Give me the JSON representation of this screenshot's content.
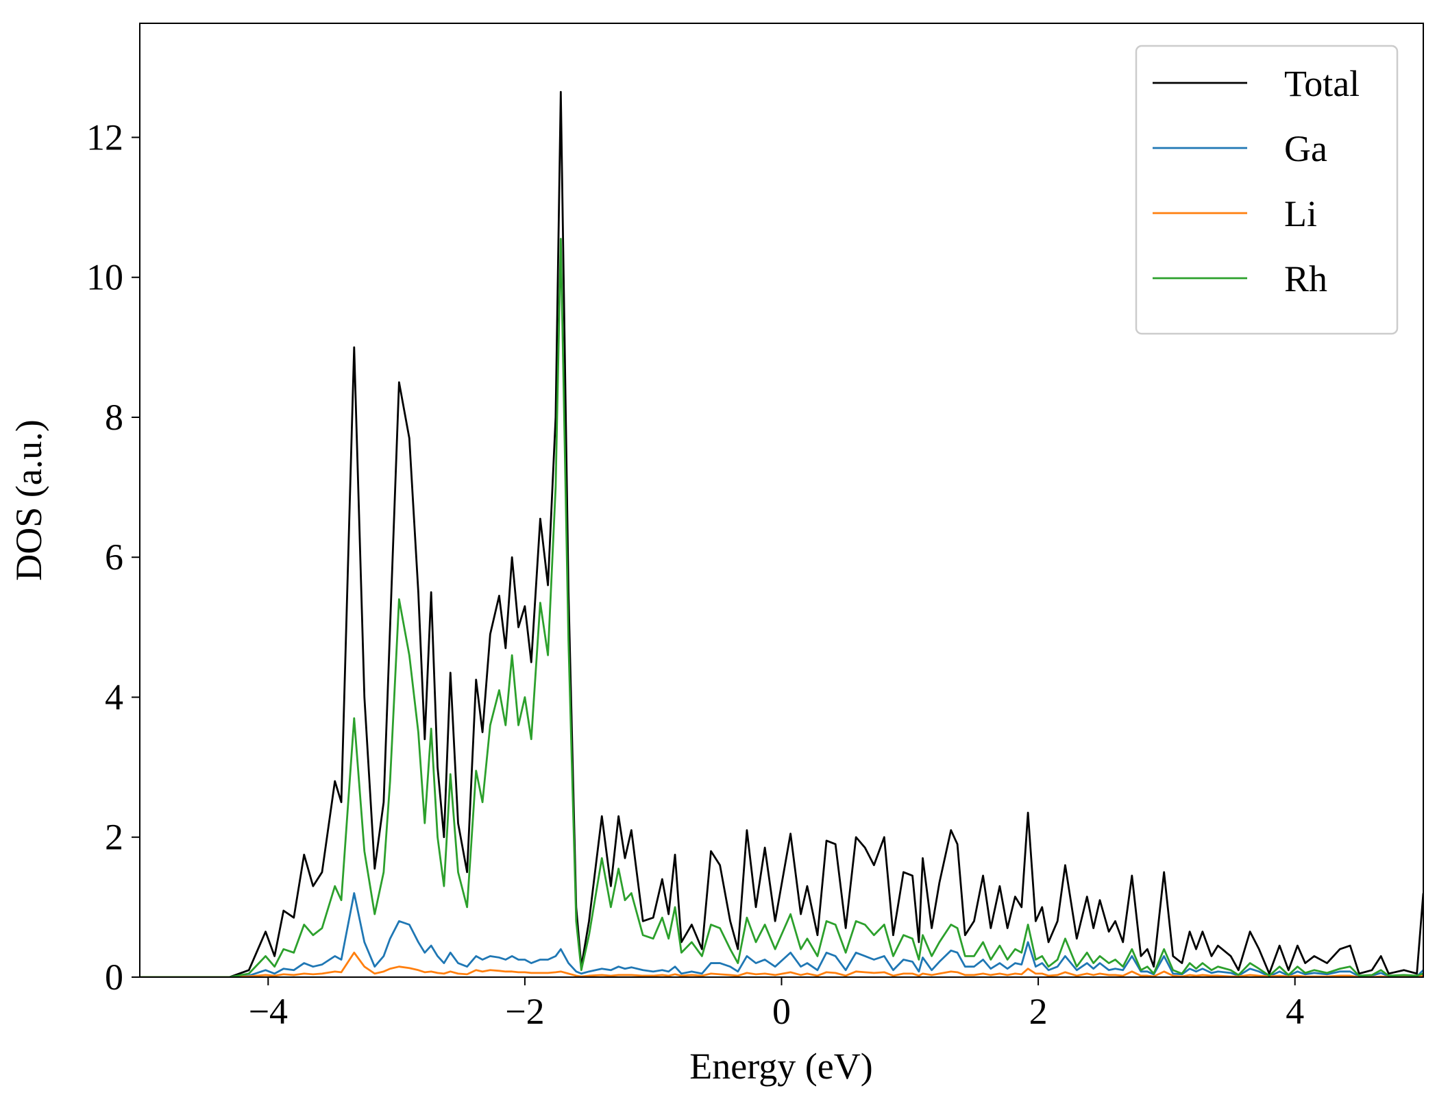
{
  "chart_data": {
    "type": "line",
    "xlabel": "Energy (eV)",
    "ylabel": "DOS (a.u.)",
    "xlim": [
      -5,
      5
    ],
    "ylim": [
      0,
      13.63
    ],
    "xticks": [
      {
        "value": -4,
        "label": "−4"
      },
      {
        "value": -2,
        "label": "−2"
      },
      0,
      2,
      4
    ],
    "yticks": [
      0,
      2,
      4,
      6,
      8,
      10,
      12
    ],
    "legend": "upper right",
    "x": [
      -5,
      -4.3,
      -4.15,
      -4.02,
      -3.95,
      -3.88,
      -3.8,
      -3.72,
      -3.65,
      -3.58,
      -3.48,
      -3.43,
      -3.33,
      -3.25,
      -3.17,
      -3.1,
      -3.05,
      -2.98,
      -2.9,
      -2.83,
      -2.78,
      -2.73,
      -2.68,
      -2.63,
      -2.58,
      -2.52,
      -2.45,
      -2.38,
      -2.33,
      -2.27,
      -2.2,
      -2.15,
      -2.1,
      -2.05,
      -2.0,
      -1.95,
      -1.88,
      -1.82,
      -1.76,
      -1.72,
      -1.66,
      -1.6,
      -1.56,
      -1.5,
      -1.4,
      -1.33,
      -1.27,
      -1.22,
      -1.17,
      -1.08,
      -1.0,
      -0.93,
      -0.88,
      -0.83,
      -0.78,
      -0.7,
      -0.62,
      -0.55,
      -0.48,
      -0.4,
      -0.34,
      -0.27,
      -0.2,
      -0.13,
      -0.05,
      0.07,
      0.15,
      0.2,
      0.28,
      0.35,
      0.42,
      0.5,
      0.58,
      0.65,
      0.72,
      0.8,
      0.87,
      0.95,
      1.02,
      1.07,
      1.1,
      1.17,
      1.23,
      1.32,
      1.37,
      1.43,
      1.5,
      1.57,
      1.63,
      1.7,
      1.76,
      1.82,
      1.87,
      1.92,
      1.98,
      2.03,
      2.08,
      2.15,
      2.21,
      2.3,
      2.38,
      2.43,
      2.48,
      2.55,
      2.6,
      2.66,
      2.73,
      2.8,
      2.85,
      2.9,
      2.98,
      3.05,
      3.12,
      3.18,
      3.23,
      3.28,
      3.35,
      3.4,
      3.5,
      3.56,
      3.65,
      3.72,
      3.8,
      3.88,
      3.95,
      4.02,
      4.08,
      4.15,
      4.25,
      4.35,
      4.43,
      4.5,
      4.6,
      4.67,
      4.73,
      4.85,
      4.95,
      5.0
    ],
    "series": [
      {
        "name": "Total",
        "color": "#000000",
        "values": [
          0,
          0,
          0.1,
          0.65,
          0.3,
          0.95,
          0.85,
          1.75,
          1.3,
          1.5,
          2.8,
          2.5,
          9.0,
          4.0,
          1.55,
          2.5,
          5.0,
          8.5,
          7.7,
          5.5,
          3.4,
          5.5,
          3.0,
          2.0,
          4.35,
          2.2,
          1.5,
          4.25,
          3.5,
          4.9,
          5.45,
          4.7,
          6.0,
          5.0,
          5.3,
          4.5,
          6.55,
          5.6,
          8.0,
          12.65,
          5.5,
          1.0,
          0.15,
          0.8,
          2.3,
          1.3,
          2.3,
          1.7,
          2.1,
          0.8,
          0.85,
          1.4,
          0.9,
          1.75,
          0.5,
          0.75,
          0.4,
          1.8,
          1.6,
          0.8,
          0.4,
          2.1,
          1.0,
          1.85,
          0.8,
          2.05,
          0.9,
          1.3,
          0.6,
          1.95,
          1.9,
          0.7,
          2.0,
          1.85,
          1.6,
          2.0,
          0.6,
          1.5,
          1.45,
          0.5,
          1.7,
          0.7,
          1.35,
          2.1,
          1.9,
          0.6,
          0.8,
          1.45,
          0.7,
          1.3,
          0.7,
          1.15,
          1.0,
          2.35,
          0.8,
          1.0,
          0.5,
          0.8,
          1.6,
          0.55,
          1.15,
          0.7,
          1.1,
          0.65,
          0.8,
          0.5,
          1.45,
          0.3,
          0.4,
          0.15,
          1.5,
          0.3,
          0.2,
          0.65,
          0.4,
          0.65,
          0.3,
          0.45,
          0.3,
          0.1,
          0.65,
          0.4,
          0.05,
          0.45,
          0.1,
          0.45,
          0.2,
          0.3,
          0.2,
          0.4,
          0.45,
          0.05,
          0.1,
          0.3,
          0.05,
          0.1,
          0.05,
          1.2
        ]
      },
      {
        "name": "Ga",
        "color": "#1f77b4",
        "values": [
          0,
          0,
          0.02,
          0.1,
          0.05,
          0.12,
          0.1,
          0.2,
          0.15,
          0.18,
          0.3,
          0.25,
          1.2,
          0.5,
          0.15,
          0.3,
          0.55,
          0.8,
          0.75,
          0.5,
          0.35,
          0.45,
          0.3,
          0.2,
          0.35,
          0.2,
          0.15,
          0.3,
          0.25,
          0.3,
          0.28,
          0.25,
          0.3,
          0.25,
          0.25,
          0.2,
          0.25,
          0.25,
          0.3,
          0.4,
          0.2,
          0.08,
          0.05,
          0.08,
          0.12,
          0.1,
          0.15,
          0.12,
          0.14,
          0.1,
          0.08,
          0.1,
          0.08,
          0.15,
          0.05,
          0.08,
          0.05,
          0.2,
          0.2,
          0.15,
          0.08,
          0.3,
          0.2,
          0.25,
          0.15,
          0.35,
          0.15,
          0.2,
          0.1,
          0.35,
          0.3,
          0.1,
          0.35,
          0.3,
          0.25,
          0.3,
          0.1,
          0.25,
          0.22,
          0.08,
          0.28,
          0.1,
          0.22,
          0.38,
          0.35,
          0.15,
          0.15,
          0.25,
          0.12,
          0.2,
          0.12,
          0.2,
          0.18,
          0.5,
          0.15,
          0.2,
          0.1,
          0.15,
          0.3,
          0.1,
          0.2,
          0.12,
          0.2,
          0.1,
          0.12,
          0.1,
          0.3,
          0.08,
          0.08,
          0.04,
          0.3,
          0.05,
          0.04,
          0.12,
          0.08,
          0.12,
          0.06,
          0.08,
          0.06,
          0.02,
          0.12,
          0.08,
          0.01,
          0.08,
          0.02,
          0.08,
          0.04,
          0.06,
          0.04,
          0.08,
          0.08,
          0.01,
          0.02,
          0.06,
          0.01,
          0.02,
          0.01,
          0.1
        ]
      },
      {
        "name": "Li",
        "color": "#ff7f0e",
        "values": [
          0,
          0,
          0.01,
          0.03,
          0.02,
          0.04,
          0.03,
          0.05,
          0.04,
          0.05,
          0.08,
          0.07,
          0.35,
          0.15,
          0.05,
          0.08,
          0.12,
          0.15,
          0.13,
          0.1,
          0.07,
          0.08,
          0.06,
          0.05,
          0.08,
          0.05,
          0.04,
          0.1,
          0.08,
          0.1,
          0.09,
          0.08,
          0.08,
          0.07,
          0.07,
          0.06,
          0.06,
          0.06,
          0.07,
          0.08,
          0.05,
          0.02,
          0.01,
          0.02,
          0.03,
          0.02,
          0.03,
          0.03,
          0.03,
          0.02,
          0.02,
          0.03,
          0.02,
          0.04,
          0.02,
          0.03,
          0.02,
          0.05,
          0.04,
          0.03,
          0.02,
          0.06,
          0.04,
          0.05,
          0.03,
          0.07,
          0.03,
          0.05,
          0.02,
          0.07,
          0.06,
          0.02,
          0.08,
          0.07,
          0.06,
          0.07,
          0.02,
          0.05,
          0.05,
          0.02,
          0.05,
          0.03,
          0.05,
          0.08,
          0.07,
          0.03,
          0.03,
          0.05,
          0.03,
          0.05,
          0.03,
          0.05,
          0.04,
          0.12,
          0.05,
          0.05,
          0.02,
          0.03,
          0.07,
          0.02,
          0.05,
          0.03,
          0.05,
          0.03,
          0.03,
          0.02,
          0.08,
          0.02,
          0.02,
          0.01,
          0.08,
          0.02,
          0.01,
          0.03,
          0.02,
          0.03,
          0.02,
          0.02,
          0.01,
          0.01,
          0.03,
          0.02,
          0.01,
          0.02,
          0.01,
          0.02,
          0.01,
          0.01,
          0.01,
          0.02,
          0.02,
          0.0,
          0.0,
          0.01,
          0.0,
          0.0,
          0.0,
          0.02
        ]
      },
      {
        "name": "Rh",
        "color": "#2ca02c",
        "values": [
          0,
          0,
          0.05,
          0.3,
          0.15,
          0.4,
          0.35,
          0.75,
          0.6,
          0.7,
          1.3,
          1.1,
          3.7,
          1.8,
          0.9,
          1.5,
          2.8,
          5.4,
          4.6,
          3.5,
          2.2,
          3.55,
          2.0,
          1.3,
          2.9,
          1.5,
          1.0,
          2.95,
          2.5,
          3.6,
          4.1,
          3.6,
          4.6,
          3.6,
          4.0,
          3.4,
          5.35,
          4.6,
          7.0,
          10.55,
          4.8,
          0.8,
          0.1,
          0.6,
          1.7,
          1.0,
          1.55,
          1.1,
          1.2,
          0.6,
          0.55,
          0.85,
          0.55,
          1.0,
          0.35,
          0.5,
          0.3,
          0.75,
          0.7,
          0.4,
          0.2,
          0.85,
          0.5,
          0.75,
          0.4,
          0.9,
          0.4,
          0.55,
          0.3,
          0.8,
          0.75,
          0.35,
          0.8,
          0.75,
          0.6,
          0.75,
          0.3,
          0.6,
          0.55,
          0.25,
          0.6,
          0.3,
          0.5,
          0.75,
          0.7,
          0.3,
          0.3,
          0.5,
          0.25,
          0.45,
          0.25,
          0.4,
          0.35,
          0.75,
          0.25,
          0.3,
          0.15,
          0.25,
          0.55,
          0.15,
          0.35,
          0.2,
          0.3,
          0.2,
          0.25,
          0.15,
          0.4,
          0.1,
          0.15,
          0.05,
          0.4,
          0.1,
          0.05,
          0.2,
          0.12,
          0.2,
          0.1,
          0.15,
          0.1,
          0.03,
          0.2,
          0.12,
          0.02,
          0.15,
          0.03,
          0.15,
          0.06,
          0.1,
          0.06,
          0.12,
          0.15,
          0.02,
          0.03,
          0.1,
          0.02,
          0.03,
          0.02,
          0.05
        ]
      }
    ]
  }
}
